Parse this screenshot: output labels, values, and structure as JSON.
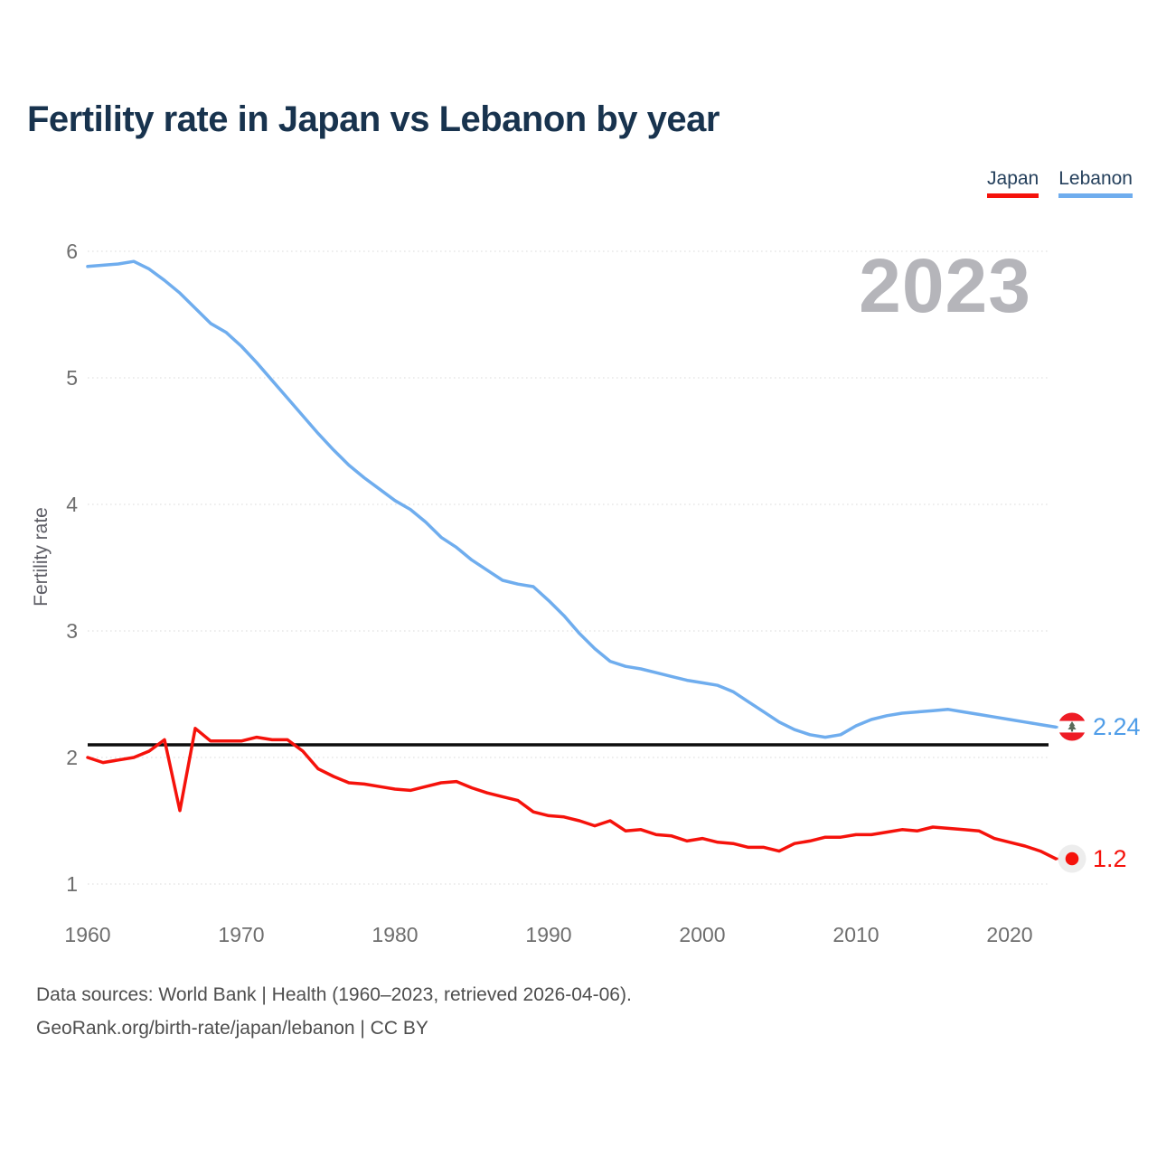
{
  "title": "Fertility rate in Japan vs Lebanon by year",
  "watermark": "2023",
  "legend": {
    "japan": "Japan",
    "lebanon": "Lebanon"
  },
  "y_axis_label": "Fertility rate",
  "end_labels": {
    "lebanon": {
      "series": "Lebanon",
      "value": "2.24"
    },
    "japan": {
      "series": "Japan",
      "value": "1.2"
    }
  },
  "footer": {
    "line1": "Data sources: World Bank | Health (1960–2023, retrieved 2026-04-06).",
    "line2": "GeoRank.org/birth-rate/japan/lebanon | CC BY"
  },
  "colors": {
    "japan_line": "#f5120b",
    "lebanon_line": "#6fadee",
    "lebanon_label_text": "#4f9de8",
    "reference_line": "#0d0d0d",
    "title_text": "#18334e",
    "watermark_text": "#b5b5ba",
    "tick_text": "#6e6e6e",
    "gridline": "#e7e7e7",
    "lebanon_flag_red": "#ee1c25",
    "japan_flag_dot": "#f5120b"
  },
  "chart_data": {
    "type": "line",
    "title": "Fertility rate in Japan vs Lebanon by year",
    "xlabel": "",
    "ylabel": "Fertility rate",
    "grid": true,
    "legend_position": "top-right",
    "ylim": [
      1,
      6
    ],
    "yticks": [
      1,
      2,
      3,
      4,
      5,
      6
    ],
    "xticks": [
      1960,
      1970,
      1980,
      1990,
      2000,
      2010,
      2020
    ],
    "reference_line": {
      "value": 2.1,
      "color": "#0d0d0d"
    },
    "x": [
      1960,
      1961,
      1962,
      1963,
      1964,
      1965,
      1966,
      1967,
      1968,
      1969,
      1970,
      1971,
      1972,
      1973,
      1974,
      1975,
      1976,
      1977,
      1978,
      1979,
      1980,
      1981,
      1982,
      1983,
      1984,
      1985,
      1986,
      1987,
      1988,
      1989,
      1990,
      1991,
      1992,
      1993,
      1994,
      1995,
      1996,
      1997,
      1998,
      1999,
      2000,
      2001,
      2002,
      2003,
      2004,
      2005,
      2006,
      2007,
      2008,
      2009,
      2010,
      2011,
      2012,
      2013,
      2014,
      2015,
      2016,
      2017,
      2018,
      2019,
      2020,
      2021,
      2022,
      2023
    ],
    "series": [
      {
        "name": "Japan",
        "color": "#f5120b",
        "end_label": "1.2",
        "values": [
          2.0,
          1.96,
          1.98,
          2.0,
          2.05,
          2.14,
          1.58,
          2.23,
          2.13,
          2.13,
          2.13,
          2.16,
          2.14,
          2.14,
          2.05,
          1.91,
          1.85,
          1.8,
          1.79,
          1.77,
          1.75,
          1.74,
          1.77,
          1.8,
          1.81,
          1.76,
          1.72,
          1.69,
          1.66,
          1.57,
          1.54,
          1.53,
          1.5,
          1.46,
          1.5,
          1.42,
          1.43,
          1.39,
          1.38,
          1.34,
          1.36,
          1.33,
          1.32,
          1.29,
          1.29,
          1.26,
          1.32,
          1.34,
          1.37,
          1.37,
          1.39,
          1.39,
          1.41,
          1.43,
          1.42,
          1.45,
          1.44,
          1.43,
          1.42,
          1.36,
          1.33,
          1.3,
          1.26,
          1.2
        ]
      },
      {
        "name": "Lebanon",
        "color": "#6fadee",
        "end_label": "2.24",
        "values": [
          5.88,
          5.89,
          5.9,
          5.92,
          5.86,
          5.77,
          5.67,
          5.55,
          5.43,
          5.36,
          5.25,
          5.12,
          4.98,
          4.84,
          4.7,
          4.56,
          4.43,
          4.31,
          4.21,
          4.12,
          4.03,
          3.96,
          3.86,
          3.74,
          3.66,
          3.56,
          3.48,
          3.4,
          3.37,
          3.35,
          3.24,
          3.12,
          2.98,
          2.86,
          2.76,
          2.72,
          2.7,
          2.67,
          2.64,
          2.61,
          2.59,
          2.57,
          2.52,
          2.44,
          2.36,
          2.28,
          2.22,
          2.18,
          2.16,
          2.18,
          2.25,
          2.3,
          2.33,
          2.35,
          2.36,
          2.37,
          2.38,
          2.36,
          2.34,
          2.32,
          2.3,
          2.28,
          2.26,
          2.24
        ]
      }
    ]
  }
}
